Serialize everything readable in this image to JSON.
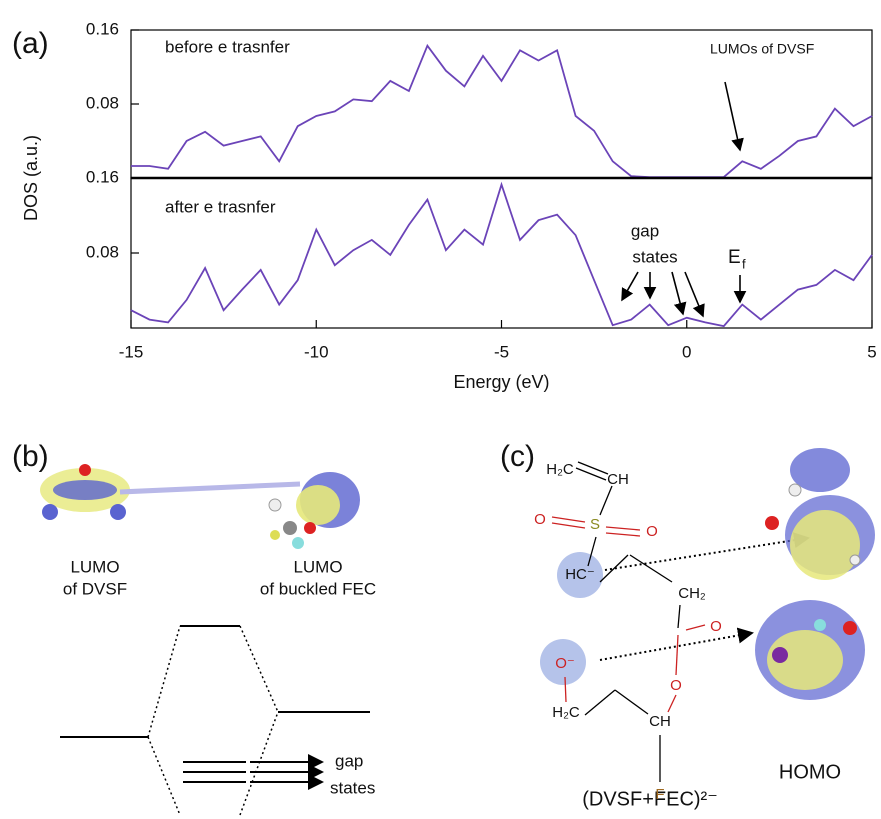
{
  "chart_data": [
    {
      "type": "line",
      "ylabel": "DOS (a.u.)",
      "color": "#6b44b8",
      "xlim": [
        -15,
        5
      ],
      "ylim": [
        0,
        0.16
      ],
      "yticks": [
        0.08,
        0.16
      ],
      "annotations": [
        "before e trasnfer",
        "LUMOs of DVSF"
      ],
      "x": [
        -15,
        -14.5,
        -14,
        -13.5,
        -13,
        -12.5,
        -12,
        -11.5,
        -11,
        -10.5,
        -10,
        -9.5,
        -9,
        -8.5,
        -8,
        -7.5,
        -7,
        -6.5,
        -6,
        -5.5,
        -5,
        -4.5,
        -4,
        -3.5,
        -3,
        -2.5,
        -2,
        -1.5,
        -1,
        -0.5,
        0,
        0.5,
        1,
        1.5,
        2,
        2.5,
        3,
        3.5,
        4,
        4.5,
        5
      ],
      "values": [
        0.013,
        0.013,
        0.01,
        0.04,
        0.05,
        0.035,
        0.04,
        0.045,
        0.018,
        0.056,
        0.067,
        0.072,
        0.085,
        0.083,
        0.105,
        0.094,
        0.143,
        0.116,
        0.099,
        0.132,
        0.105,
        0.138,
        0.127,
        0.138,
        0.067,
        0.051,
        0.018,
        0.002,
        0.001,
        0.001,
        0.001,
        0.001,
        0.001,
        0.018,
        0.01,
        0.024,
        0.04,
        0.045,
        0.075,
        0.056,
        0.067
      ]
    },
    {
      "type": "line",
      "xlabel": "Energy (eV)",
      "color": "#6b44b8",
      "xlim": [
        -15,
        5
      ],
      "xticks": [
        -15,
        -10,
        -5,
        0,
        5
      ],
      "ylim": [
        0,
        0.16
      ],
      "yticks": [
        0.08,
        0.16
      ],
      "annotations": [
        "after e trasnfer",
        "gap",
        "states"
      ],
      "fermi_label": {
        "text": "E",
        "subscript": "f"
      },
      "x": [
        -15,
        -14.5,
        -14,
        -13.5,
        -13,
        -12.5,
        -12,
        -11.5,
        -11,
        -10.5,
        -10,
        -9.5,
        -9,
        -8.5,
        -8,
        -7.5,
        -7,
        -6.5,
        -6,
        -5.5,
        -5,
        -4.5,
        -4,
        -3.5,
        -3,
        -2.5,
        -2,
        -1.5,
        -1,
        -0.5,
        0,
        0.5,
        1,
        1.5,
        2,
        2.5,
        3,
        3.5,
        4,
        4.5,
        5
      ],
      "values": [
        0.019,
        0.009,
        0.006,
        0.03,
        0.064,
        0.019,
        0.041,
        0.062,
        0.025,
        0.051,
        0.105,
        0.067,
        0.083,
        0.094,
        0.078,
        0.11,
        0.137,
        0.083,
        0.105,
        0.089,
        0.153,
        0.094,
        0.115,
        0.121,
        0.099,
        0.051,
        0.003,
        0.009,
        0.025,
        0.003,
        0.011,
        0.006,
        0.002,
        0.025,
        0.009,
        0.025,
        0.041,
        0.046,
        0.062,
        0.051,
        0.078
      ]
    }
  ],
  "panels": {
    "a": "(a)",
    "b": "(b)",
    "c": "(c)"
  },
  "panel_b": {
    "lumo_dvsf": [
      "LUMO",
      "of DVSF"
    ],
    "lumo_fec": [
      "LUMO",
      "of buckled FEC"
    ],
    "gap_states": [
      "gap",
      "states"
    ]
  },
  "panel_c": {
    "atoms": [
      "H₂C",
      "CH",
      "O",
      "S",
      "O",
      "HC⁻",
      "CH₂",
      "O",
      "O⁻",
      "O",
      "H₂C",
      "CH",
      "F"
    ],
    "formula": "(DVSF+FEC)²⁻",
    "homo": "HOMO"
  }
}
